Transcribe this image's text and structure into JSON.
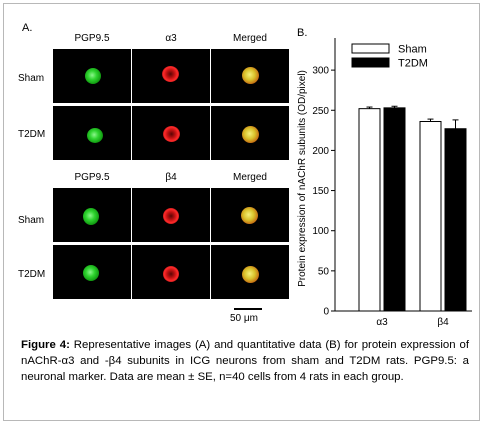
{
  "panel_a": {
    "label": "A.",
    "top_group": {
      "headers": [
        "PGP9.5",
        "α3",
        "Merged"
      ],
      "rows": [
        "Sham",
        "T2DM"
      ]
    },
    "bottom_group": {
      "headers": [
        "PGP9.5",
        "β4",
        "Merged"
      ],
      "rows": [
        "Sham",
        "T2DM"
      ]
    },
    "scale_label": "50 μm"
  },
  "panel_b": {
    "label": "B."
  },
  "chart_data": {
    "type": "bar",
    "categories": [
      "α3",
      "β4"
    ],
    "series": [
      {
        "name": "Sham",
        "values": [
          252,
          236
        ],
        "errors": [
          2,
          3
        ],
        "color": "#ffffff"
      },
      {
        "name": "T2DM",
        "values": [
          253,
          227
        ],
        "errors": [
          2,
          11
        ],
        "color": "#000000"
      }
    ],
    "ylabel": "Protein expression of nAChR subunits (OD/pixel)",
    "yticks": [
      0,
      50,
      100,
      150,
      200,
      250,
      300
    ],
    "ylim": [
      0,
      340
    ],
    "legend_position": "top"
  },
  "caption": {
    "label": "Figure 4:",
    "text": " Representative images (A) and quantitative data (B) for protein expression of nAChR-α3 and -β4 subunits in ICG neurons from sham and T2DM rats. PGP9.5: a neuronal marker. Data are mean ± SE, n=40 cells from 4 rats in each group."
  }
}
